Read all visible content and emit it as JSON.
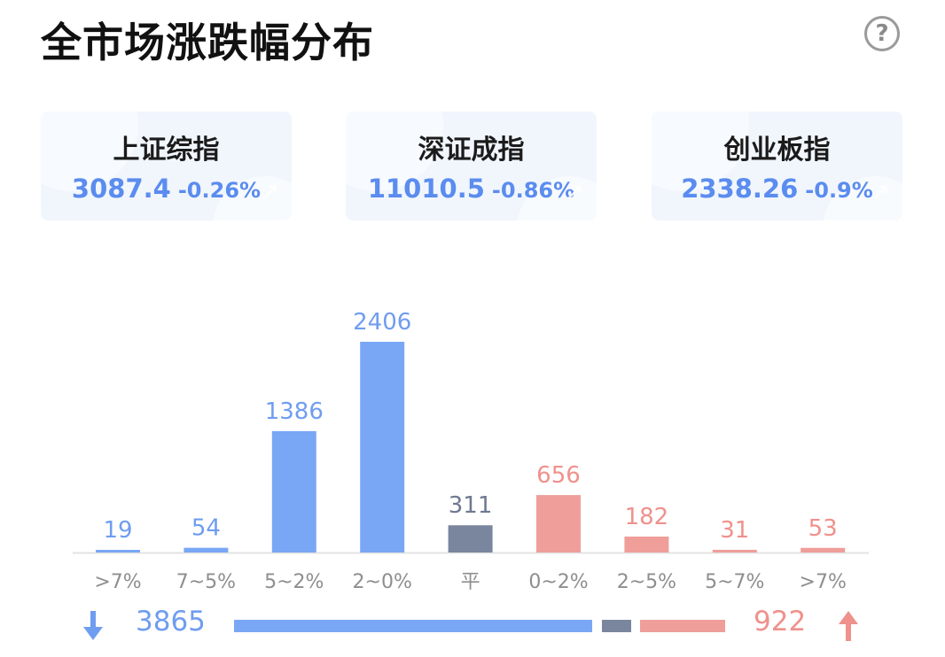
{
  "header": {
    "title": "全市场涨跌幅分布",
    "help_icon": "help-icon",
    "help_glyph": "?"
  },
  "indices": [
    {
      "name": "上证综指",
      "value": "3087.4",
      "change": "-0.26%"
    },
    {
      "name": "深证成指",
      "value": "11010.5",
      "change": "-0.86%"
    },
    {
      "name": "创业板指",
      "value": "2338.26",
      "change": "-0.9%"
    }
  ],
  "colors": {
    "down": "#7aa7f5",
    "flat": "#7a869e",
    "up": "#ef9e9a",
    "text_down": "#6f9df0",
    "text_flat": "#6e7890",
    "text_up": "#ef918c"
  },
  "chart_data": {
    "type": "bar",
    "categories": [
      ">7%",
      "7~5%",
      "5~2%",
      "2~0%",
      "平",
      "0~2%",
      "2~5%",
      "5~7%",
      ">7%"
    ],
    "values": [
      19,
      54,
      1386,
      2406,
      311,
      656,
      182,
      31,
      53
    ],
    "groups": [
      "down",
      "down",
      "down",
      "down",
      "flat",
      "up",
      "up",
      "up",
      "up"
    ],
    "ylim": [
      0,
      2406
    ]
  },
  "summary": {
    "down_count": "3865",
    "flat_count": "311",
    "up_count": "922"
  }
}
